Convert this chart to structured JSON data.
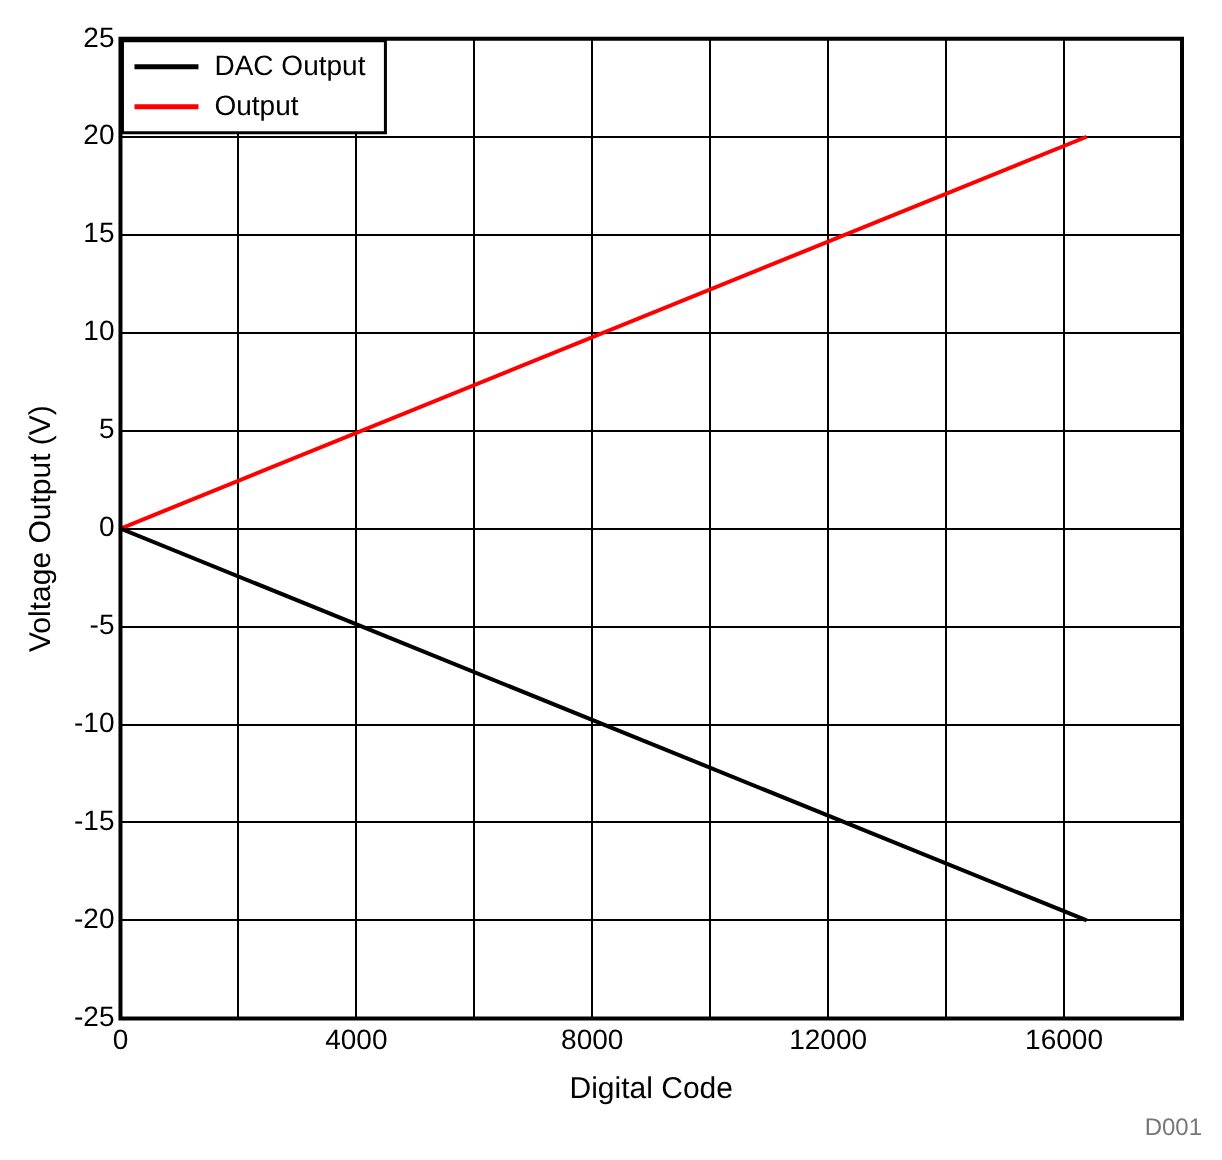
{
  "chart_data": {
    "type": "line",
    "xlabel": "Digital Code",
    "ylabel": "Voltage Output (V)",
    "annotations": [
      "D001"
    ],
    "x": [
      0,
      16384
    ],
    "series": [
      {
        "name": "DAC Output",
        "color": "#000000",
        "values": [
          0,
          -20
        ]
      },
      {
        "name": "Output",
        "color": "#ff0000",
        "values": [
          0,
          20
        ]
      }
    ],
    "xlim": [
      0,
      18000
    ],
    "xticks": [
      0,
      {
        "value": 2000,
        "label": null
      },
      4000,
      {
        "value": 6000,
        "label": null
      },
      8000,
      {
        "value": 10000,
        "label": null
      },
      12000,
      {
        "value": 14000,
        "label": null
      },
      16000,
      {
        "value": 18000,
        "label": null
      }
    ],
    "ylim": [
      -25,
      25
    ],
    "yticks": [
      -25,
      -20,
      -15,
      -10,
      -5,
      0,
      5,
      10,
      15,
      20,
      25
    ],
    "grid": true,
    "legend": "top left",
    "marker": "none",
    "line_style": "solid"
  }
}
